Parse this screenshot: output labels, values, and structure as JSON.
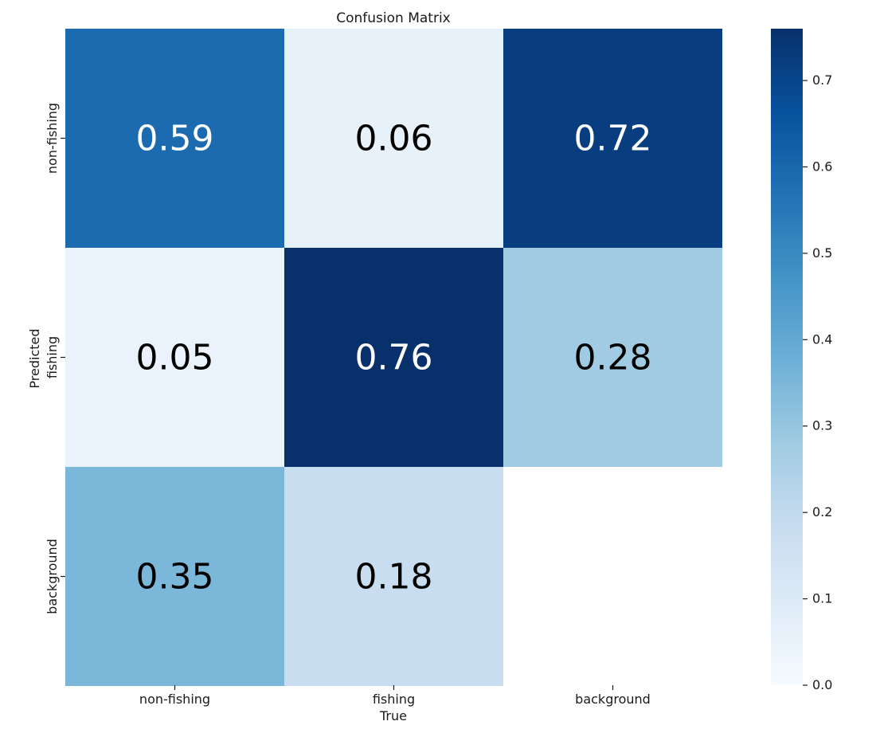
{
  "chart_data": {
    "type": "heatmap",
    "title": "Confusion Matrix",
    "xlabel": "True",
    "ylabel": "Predicted",
    "x_categories": [
      "non-fishing",
      "fishing",
      "background"
    ],
    "y_categories": [
      "non-fishing",
      "fishing",
      "background"
    ],
    "values": [
      [
        0.59,
        0.06,
        0.72
      ],
      [
        0.05,
        0.76,
        0.28
      ],
      [
        0.35,
        0.18,
        null
      ]
    ],
    "colorbar": {
      "range": [
        0.0,
        0.76
      ],
      "ticks": [
        "0.0",
        "0.1",
        "0.2",
        "0.3",
        "0.4",
        "0.5",
        "0.6",
        "0.7"
      ],
      "colormap": "Blues"
    },
    "grid": false
  }
}
